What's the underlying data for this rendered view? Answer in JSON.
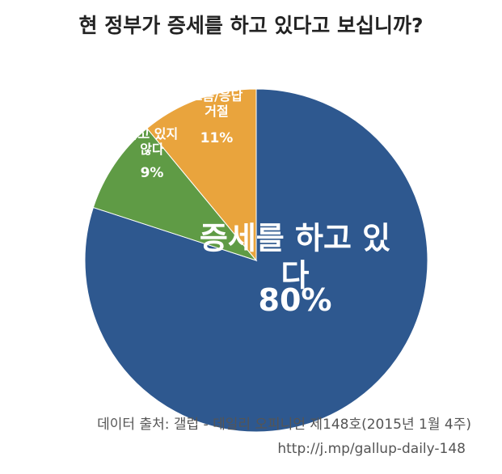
{
  "chart_data": {
    "type": "pie",
    "title": "현 정부가 증세를 하고 있다고 보십니까?",
    "categories": [
      "증세를 하고 있다",
      "하고 있지\n않다",
      "모름/응답\n거절"
    ],
    "values": [
      80,
      9,
      11
    ],
    "value_labels": [
      "80%",
      "9%",
      "11%"
    ],
    "colors": [
      "#2e588f",
      "#5f9b45",
      "#e9a43d"
    ],
    "source": "데이터 출처: 갤럽 - 데일리 오피니언 제148호(2015년 1월 4주)",
    "url": "http://j.mp/gallup-daily-148"
  }
}
